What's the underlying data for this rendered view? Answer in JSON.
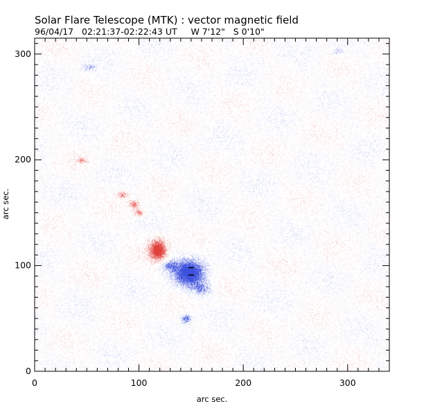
{
  "header": {
    "title": "Solar Flare Telescope (MTK) : vector magnetic field",
    "subtitle": "96/04/17   02:21:37-02:22:43 UT     W 7'12\"   S 0'10\""
  },
  "chart_data": {
    "type": "heatmap",
    "title": "Solar Flare Telescope (MTK) : vector magnetic field",
    "xlabel": "arc sec.",
    "ylabel": "arc sec.",
    "xlim": [
      0,
      340
    ],
    "ylim": [
      0,
      315
    ],
    "x_ticks": [
      0,
      100,
      200,
      300
    ],
    "y_ticks": [
      0,
      100,
      200,
      300
    ],
    "x_minor_step": 10,
    "y_minor_step": 10,
    "colors": {
      "positive_polarity": "#e0403c",
      "negative_polarity": "#3c50dc",
      "background": "#ffffff"
    },
    "regions": [
      {
        "polarity": "positive",
        "x": 118,
        "y": 115,
        "rx": 8,
        "ry": 10,
        "strength": 1.0
      },
      {
        "polarity": "positive",
        "x": 100,
        "y": 150,
        "rx": 5,
        "ry": 3,
        "strength": 0.55
      },
      {
        "polarity": "positive",
        "x": 95,
        "y": 158,
        "rx": 5,
        "ry": 4,
        "strength": 0.55
      },
      {
        "polarity": "positive",
        "x": 84,
        "y": 167,
        "rx": 6,
        "ry": 3,
        "strength": 0.5
      },
      {
        "polarity": "positive",
        "x": 45,
        "y": 200,
        "rx": 5,
        "ry": 3,
        "strength": 0.4
      },
      {
        "polarity": "negative",
        "x": 148,
        "y": 93,
        "rx": 14,
        "ry": 12,
        "strength": 1.0
      },
      {
        "polarity": "negative",
        "x": 145,
        "y": 50,
        "rx": 5,
        "ry": 4,
        "strength": 0.7
      },
      {
        "polarity": "negative",
        "x": 128,
        "y": 100,
        "rx": 8,
        "ry": 5,
        "strength": 0.5
      },
      {
        "polarity": "negative",
        "x": 160,
        "y": 78,
        "rx": 8,
        "ry": 6,
        "strength": 0.45
      },
      {
        "polarity": "negative",
        "x": 52,
        "y": 288,
        "rx": 6,
        "ry": 3,
        "strength": 0.3
      },
      {
        "polarity": "negative",
        "x": 290,
        "y": 303,
        "rx": 5,
        "ry": 3,
        "strength": 0.3
      }
    ],
    "vectors": [
      {
        "x": 150,
        "y": 98
      },
      {
        "x": 150,
        "y": 91
      }
    ]
  }
}
